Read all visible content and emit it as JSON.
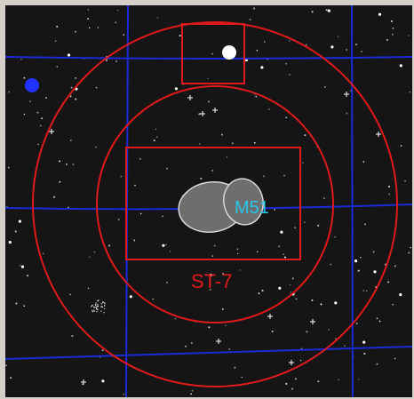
{
  "viewer": {
    "object_label": "M51",
    "fov_label": "ST-7"
  },
  "colors": {
    "background": "#151515",
    "grid": "#1a2bd6",
    "indicator": "#e01a1a",
    "galaxy_fill": "#6e6e6e",
    "galaxy_outline": "#d8d8d8",
    "object_label": "#29c6e8",
    "bright_star": "#ffffff",
    "planet": "#2233ff"
  },
  "icons": {
    "telrad_rings": "circle-icon",
    "ccd_frame": "rectangle-icon",
    "finder_frame": "rectangle-icon"
  }
}
